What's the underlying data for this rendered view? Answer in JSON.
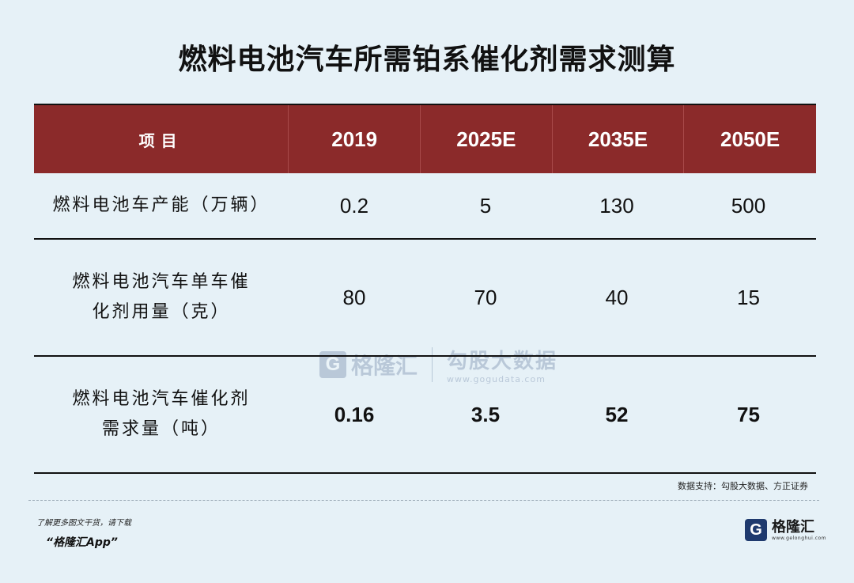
{
  "title": "燃料电池汽车所需铂系催化剂需求测算",
  "table": {
    "headers": [
      "项目",
      "2019",
      "2025E",
      "2035E",
      "2050E"
    ],
    "rows": [
      {
        "label": "燃料电池车产能（万辆）",
        "values": [
          "0.2",
          "5",
          "130",
          "500"
        ]
      },
      {
        "label": "燃料电池汽车单车催化剂用量（克）",
        "values": [
          "80",
          "70",
          "40",
          "15"
        ]
      },
      {
        "label": "燃料电池汽车催化剂需求量（吨）",
        "values": [
          "0.16",
          "3.5",
          "52",
          "75"
        ]
      }
    ]
  },
  "source": "数据支持：勾股大数据、方正证券",
  "footer": {
    "line1": "了解更多图文干货，请下载",
    "line2": "“格隆汇App”",
    "logo_letter": "G",
    "logo_name": "格隆汇",
    "logo_url": "www.gelonghui.com"
  },
  "watermark": {
    "left_letter": "G",
    "left_name": "格隆汇",
    "right_name": "勾股大数据",
    "right_url": "www.gogudata.com"
  },
  "colors": {
    "background": "#e6f1f7",
    "header_bg": "#8b2a2a",
    "brand": "#1f3a6e"
  }
}
